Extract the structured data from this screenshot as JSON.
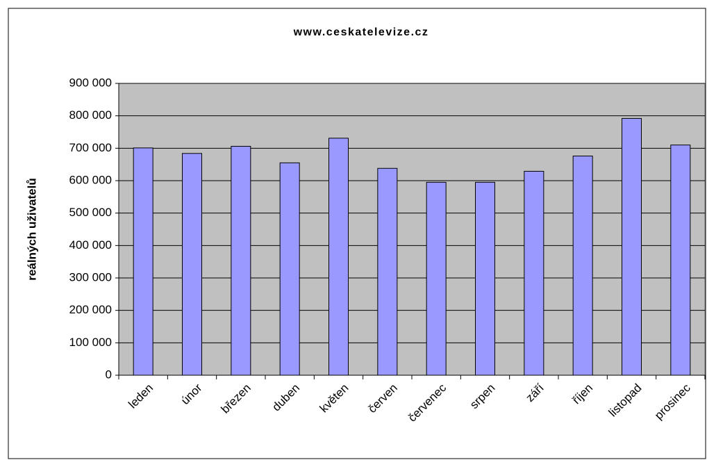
{
  "chart_data": {
    "type": "bar",
    "title": "www.ceskatelevize.cz",
    "y_label": "reálných uživatelů",
    "categories": [
      "leden",
      "únor",
      "březen",
      "duben",
      "květen",
      "červen",
      "červenec",
      "srpen",
      "září",
      "říjen",
      "listopad",
      "prosinec"
    ],
    "values": [
      701000,
      684000,
      706000,
      655000,
      731000,
      638000,
      595000,
      595000,
      629000,
      676000,
      792000,
      710000
    ],
    "color": "#9999ff",
    "ylim": [
      0,
      900000
    ],
    "yticks": [
      0,
      {
        "value": 100000,
        "label": "100 000"
      },
      {
        "value": 200000,
        "label": "200 000"
      },
      {
        "value": 300000,
        "label": "300 000"
      },
      {
        "value": 400000,
        "label": "400 000"
      },
      {
        "value": 500000,
        "label": "500 000"
      },
      {
        "value": 600000,
        "label": "600 000"
      },
      {
        "value": 700000,
        "label": "700 000"
      },
      {
        "value": 800000,
        "label": "800 000"
      },
      {
        "value": 900000,
        "label": "900 000"
      }
    ],
    "grid": true
  }
}
